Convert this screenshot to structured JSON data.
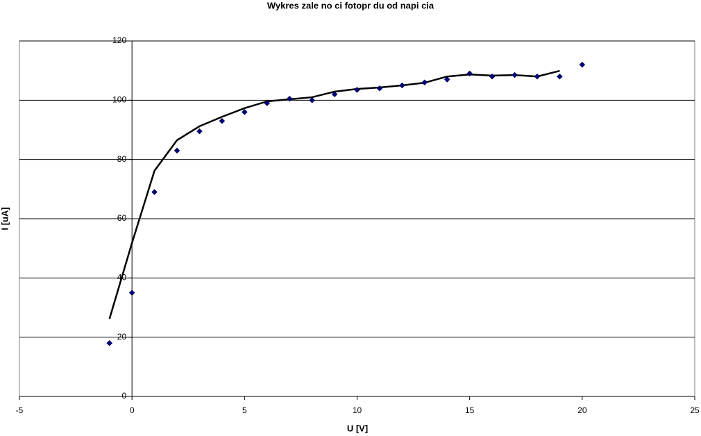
{
  "chart_data": {
    "type": "scatter",
    "title": "Wykres zale no ci fotopr du od napi cia",
    "x_label": "U [V]",
    "y_label": "I [uA]",
    "xlim": [
      -5,
      25
    ],
    "xticks": [
      -5,
      0,
      5,
      10,
      15,
      20,
      25
    ],
    "ylim": [
      0,
      120
    ],
    "yticks": [
      0,
      20,
      40,
      60,
      80,
      100,
      120
    ],
    "grid": true,
    "series": [
      {
        "mode": "markers",
        "color": "#000080",
        "x": [
          -1,
          0,
          1,
          2,
          3,
          4,
          5,
          6,
          7,
          8,
          9,
          10,
          11,
          12,
          13,
          14,
          15,
          16,
          17,
          18,
          19,
          20
        ],
        "y": [
          18,
          35,
          69,
          83,
          89.5,
          93,
          96,
          99,
          100.5,
          100,
          102,
          103.5,
          104,
          105,
          106,
          107,
          109,
          108,
          108.5,
          108,
          108,
          112
        ]
      },
      {
        "mode": "line",
        "color": "#000000",
        "x": [
          -1,
          0,
          1,
          2,
          3,
          4,
          5,
          6,
          7,
          8,
          9,
          10,
          11,
          12,
          13,
          14,
          15,
          16,
          17,
          18,
          19
        ],
        "y": [
          26.2,
          51.8,
          76.2,
          86.5,
          91.2,
          94.4,
          97.3,
          99.6,
          100.3,
          101,
          102.9,
          103.8,
          104.3,
          105,
          105.9,
          108,
          108.7,
          108.3,
          108.5,
          108,
          109.9
        ]
      }
    ]
  }
}
